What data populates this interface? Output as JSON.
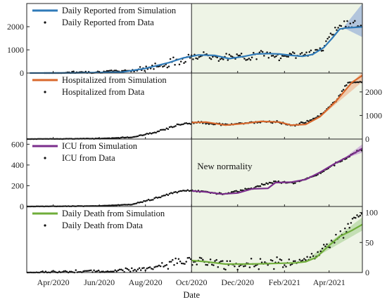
{
  "chart_data": {
    "type": "line",
    "shared_x": {
      "label": "Date",
      "range": [
        "2020-02-26",
        "2021-05-15"
      ],
      "ticks": [
        "2020-04-01",
        "2020-06-01",
        "2020-08-01",
        "2020-10-01",
        "2020-12-01",
        "2021-02-01",
        "2021-04-01"
      ],
      "tick_labels": [
        "Apr/2020",
        "Jun/2020",
        "Aug/2020",
        "Oct/2020",
        "Dec/2020",
        "Feb/2021",
        "Apr/2021"
      ]
    },
    "divider_date": "2020-10-01",
    "annotation": "New normality",
    "shaded_region": {
      "from": "2020-10-01",
      "to": "2021-05-15",
      "color": "#eef4e6"
    },
    "panels": [
      {
        "id": "reported",
        "y_axis_side": "left",
        "ylim": [
          0,
          3000
        ],
        "yticks": [
          0,
          1000,
          2000
        ],
        "color": "#2f7ab8",
        "band_color": "#9db6d8",
        "series": [
          {
            "name": "Daily Reported from Simulation",
            "kind": "line",
            "x": [
              "2020-03-01",
              "2020-05-01",
              "2020-07-01",
              "2020-08-01",
              "2020-09-01",
              "2020-09-20",
              "2020-10-10",
              "2020-11-01",
              "2020-11-20",
              "2020-12-10",
              "2020-12-25",
              "2021-01-10",
              "2021-01-25",
              "2021-02-10",
              "2021-02-25",
              "2021-03-10",
              "2021-03-25",
              "2021-04-05",
              "2021-04-15",
              "2021-04-25",
              "2021-05-05",
              "2021-05-15"
            ],
            "y": [
              0,
              5,
              40,
              200,
              450,
              650,
              780,
              760,
              620,
              720,
              820,
              840,
              820,
              760,
              720,
              800,
              1100,
              1500,
              1900,
              1950,
              1970,
              1990
            ]
          },
          {
            "name": "Daily Reported from Data",
            "kind": "scatter",
            "x": [
              "2020-04-15",
              "2020-06-15",
              "2020-08-01",
              "2020-09-01",
              "2020-09-20",
              "2020-10-10",
              "2020-11-01",
              "2020-12-01",
              "2021-01-01",
              "2021-02-01",
              "2021-03-01",
              "2021-03-25",
              "2021-04-10",
              "2021-04-25",
              "2021-05-10"
            ],
            "y": [
              20,
              60,
              180,
              430,
              640,
              760,
              720,
              680,
              800,
              750,
              780,
              1150,
              1950,
              2100,
              2000
            ]
          }
        ],
        "band": {
          "x": [
            "2021-04-20",
            "2021-05-15"
          ],
          "lower": [
            1950,
            1550
          ],
          "upper": [
            1970,
            3000
          ]
        }
      },
      {
        "id": "hospitalized",
        "y_axis_side": "right",
        "ylim": [
          0,
          2800
        ],
        "yticks": [
          0,
          1000,
          2000
        ],
        "color": "#d8682c",
        "band_color": "#efbd9b",
        "series": [
          {
            "name": "Hospitalized from Simulation",
            "kind": "line",
            "x": [
              "2020-10-01",
              "2020-10-20",
              "2020-11-15",
              "2020-12-10",
              "2021-01-01",
              "2021-01-25",
              "2021-02-10",
              "2021-03-01",
              "2021-03-20",
              "2021-04-10",
              "2021-05-01",
              "2021-05-15"
            ],
            "y": [
              700,
              720,
              590,
              660,
              750,
              720,
              590,
              620,
              950,
              1600,
              2400,
              2700
            ]
          },
          {
            "name": "Hospitalized from Data",
            "kind": "scatter",
            "x": [
              "2020-03-01",
              "2020-06-01",
              "2020-07-15",
              "2020-08-15",
              "2020-09-15",
              "2020-10-10",
              "2020-11-15",
              "2020-12-20",
              "2021-01-20",
              "2021-02-15",
              "2021-03-15",
              "2021-04-10",
              "2021-04-25",
              "2021-05-15"
            ],
            "y": [
              0,
              20,
              80,
              300,
              620,
              720,
              600,
              710,
              730,
              570,
              900,
              1600,
              2400,
              2430
            ]
          }
        ],
        "band": {
          "x": [
            "2021-03-20",
            "2021-05-15"
          ],
          "lower": [
            920,
            2430
          ],
          "upper": [
            980,
            2850
          ]
        }
      },
      {
        "id": "icu",
        "y_axis_side": "left",
        "ylim": [
          0,
          650
        ],
        "yticks": [
          0,
          200,
          400,
          600
        ],
        "color": "#7b2e8c",
        "band_color": "#caa5d6",
        "series": [
          {
            "name": "ICU from Simulation",
            "kind": "line",
            "x": [
              "2020-10-01",
              "2020-10-20",
              "2020-11-10",
              "2020-12-01",
              "2020-12-20",
              "2021-01-10",
              "2021-01-20",
              "2021-02-10",
              "2021-03-01",
              "2021-03-20",
              "2021-04-10",
              "2021-05-01",
              "2021-05-15"
            ],
            "y": [
              150,
              140,
              120,
              130,
              170,
              175,
              230,
              235,
              260,
              330,
              420,
              500,
              560
            ]
          },
          {
            "name": "ICU from Data",
            "kind": "scatter",
            "x": [
              "2020-03-01",
              "2020-06-01",
              "2020-07-15",
              "2020-08-15",
              "2020-09-15",
              "2020-10-10",
              "2020-11-10",
              "2020-12-10",
              "2021-01-20",
              "2021-02-15",
              "2021-03-15",
              "2021-04-15",
              "2021-05-10"
            ],
            "y": [
              0,
              5,
              20,
              80,
              150,
              150,
              120,
              160,
              240,
              230,
              300,
              430,
              540
            ]
          }
        ],
        "band": {
          "x": [
            "2021-04-25",
            "2021-05-15"
          ],
          "lower": [
            470,
            520
          ],
          "upper": [
            490,
            600
          ]
        }
      },
      {
        "id": "death",
        "y_axis_side": "right",
        "ylim": [
          0,
          110
        ],
        "yticks": [
          0,
          50,
          100
        ],
        "color": "#6fad3a",
        "band_color": "#b6d8a3",
        "series": [
          {
            "name": "Daily Death from Simulation",
            "kind": "line",
            "x": [
              "2020-10-01",
              "2020-10-20",
              "2020-11-15",
              "2020-12-15",
              "2021-01-15",
              "2021-02-15",
              "2021-03-01",
              "2021-03-15",
              "2021-04-01",
              "2021-04-15",
              "2021-05-01",
              "2021-05-15"
            ],
            "y": [
              20,
              18,
              14,
              14,
              15,
              16,
              18,
              25,
              45,
              60,
              70,
              80
            ]
          },
          {
            "name": "Daily Death from Data",
            "kind": "scatter",
            "x": [
              "2020-03-15",
              "2020-06-15",
              "2020-07-20",
              "2020-08-15",
              "2020-09-15",
              "2020-10-10",
              "2020-11-15",
              "2020-12-15",
              "2021-01-15",
              "2021-02-15",
              "2021-03-15",
              "2021-04-10",
              "2021-04-25",
              "2021-05-10"
            ],
            "y": [
              1,
              2,
              5,
              10,
              18,
              18,
              13,
              14,
              15,
              17,
              28,
              55,
              75,
              95
            ]
          }
        ],
        "band": {
          "x": [
            "2021-03-01",
            "2021-05-15"
          ],
          "lower": [
            16,
            70
          ],
          "upper": [
            20,
            92
          ]
        }
      }
    ]
  }
}
